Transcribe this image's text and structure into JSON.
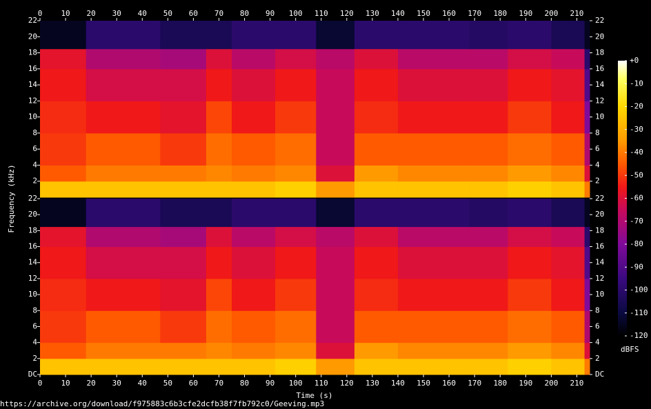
{
  "chart_data": [
    {
      "type": "spectrogram",
      "ylabel": "Frequency (kHz)",
      "xlim": [
        0,
        215
      ],
      "xticks": [
        0,
        10,
        20,
        30,
        40,
        50,
        60,
        70,
        80,
        90,
        100,
        110,
        120,
        130,
        140,
        150,
        160,
        170,
        180,
        190,
        200,
        210
      ],
      "ylim": [
        0,
        22
      ],
      "yticks": [
        2,
        4,
        6,
        8,
        10,
        12,
        14,
        16,
        18,
        20,
        22
      ],
      "time_bins": [
        0,
        18,
        47,
        65,
        75,
        92,
        108,
        123,
        140,
        168,
        183,
        200,
        213,
        215
      ],
      "freq_bins": [
        0,
        2,
        4,
        8,
        12,
        16,
        18.5,
        22
      ],
      "values": [
        [
          -25,
          -45,
          -50,
          -52,
          -55,
          -58,
          -115
        ],
        [
          -25,
          -40,
          -45,
          -55,
          -62,
          -70,
          -100
        ],
        [
          -25,
          -40,
          -50,
          -58,
          -62,
          -72,
          -105
        ],
        [
          -25,
          -38,
          -42,
          -48,
          -55,
          -60,
          -105
        ],
        [
          -25,
          -40,
          -45,
          -55,
          -60,
          -68,
          -100
        ],
        [
          -22,
          -38,
          -42,
          -50,
          -55,
          -62,
          -100
        ],
        [
          -35,
          -60,
          -65,
          -65,
          -65,
          -68,
          -112
        ],
        [
          -25,
          -35,
          -45,
          -52,
          -55,
          -60,
          -100
        ],
        [
          -25,
          -38,
          -45,
          -55,
          -60,
          -68,
          -100
        ],
        [
          -25,
          -38,
          -45,
          -55,
          -60,
          -68,
          -102
        ],
        [
          -22,
          -35,
          -42,
          -50,
          -55,
          -62,
          -100
        ],
        [
          -25,
          -38,
          -45,
          -55,
          -58,
          -65,
          -105
        ],
        [
          -40,
          -60,
          -70,
          -80,
          -90,
          -100,
          -115
        ]
      ],
      "colorbar": {
        "label": "dBFS",
        "lim": [
          -120,
          0
        ],
        "ticks": [
          {
            "value": 0,
            "label": "+0"
          },
          -10,
          -20,
          -30,
          -40,
          -50,
          -60,
          -70,
          -80,
          -90,
          -100,
          -110,
          -120
        ],
        "colormap": [
          [
            -120,
            "#000000"
          ],
          [
            -110,
            "#0a0a40"
          ],
          [
            -95,
            "#3a0a80"
          ],
          [
            -80,
            "#800a9a"
          ],
          [
            -65,
            "#c80a5a"
          ],
          [
            -55,
            "#f01818"
          ],
          [
            -45,
            "#ff5a00"
          ],
          [
            -35,
            "#ff9a00"
          ],
          [
            -20,
            "#ffd800"
          ],
          [
            -8,
            "#ffff60"
          ],
          [
            0,
            "#ffffff"
          ]
        ]
      }
    },
    {
      "type": "spectrogram",
      "xlabel": "Time (s)",
      "xlim": [
        0,
        215
      ],
      "xticks": [
        0,
        10,
        20,
        30,
        40,
        50,
        60,
        70,
        80,
        90,
        100,
        110,
        120,
        130,
        140,
        150,
        160,
        170,
        180,
        190,
        200,
        210
      ],
      "ylim": [
        0,
        22
      ],
      "yticks": [
        {
          "value": 0,
          "label": "DC"
        },
        2,
        4,
        6,
        8,
        10,
        12,
        14,
        16,
        18,
        20,
        22
      ],
      "time_bins": [
        0,
        18,
        47,
        65,
        75,
        92,
        108,
        123,
        140,
        168,
        183,
        200,
        213,
        215
      ],
      "freq_bins": [
        0,
        2,
        4,
        8,
        12,
        16,
        18.5,
        22
      ],
      "values": [
        [
          -25,
          -45,
          -50,
          -52,
          -55,
          -58,
          -115
        ],
        [
          -25,
          -40,
          -45,
          -55,
          -62,
          -70,
          -100
        ],
        [
          -25,
          -40,
          -50,
          -58,
          -62,
          -72,
          -105
        ],
        [
          -25,
          -38,
          -42,
          -48,
          -55,
          -60,
          -105
        ],
        [
          -25,
          -40,
          -45,
          -55,
          -60,
          -68,
          -100
        ],
        [
          -22,
          -38,
          -42,
          -50,
          -55,
          -62,
          -100
        ],
        [
          -35,
          -60,
          -65,
          -65,
          -65,
          -68,
          -112
        ],
        [
          -25,
          -35,
          -45,
          -52,
          -55,
          -60,
          -100
        ],
        [
          -25,
          -38,
          -45,
          -55,
          -60,
          -68,
          -100
        ],
        [
          -25,
          -38,
          -45,
          -55,
          -60,
          -68,
          -102
        ],
        [
          -22,
          -35,
          -42,
          -50,
          -55,
          -62,
          -100
        ],
        [
          -25,
          -38,
          -45,
          -55,
          -58,
          -65,
          -105
        ],
        [
          -40,
          -60,
          -70,
          -80,
          -90,
          -100,
          -115
        ]
      ]
    }
  ],
  "source": "https://archive.org/download/f975883c6b3cfe2dcfb38f7fb792c0/Geeving.mp3"
}
